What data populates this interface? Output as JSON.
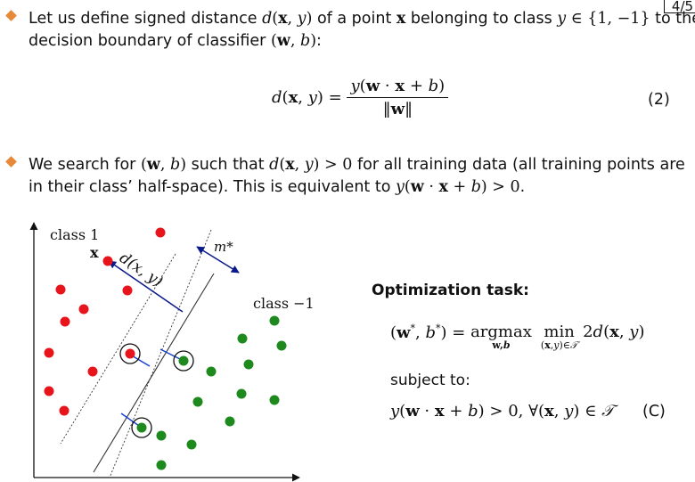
{
  "page_number": "4/5",
  "bullet1": {
    "line1_pre": "Let us define signed distance ",
    "line1_mid": " of a point ",
    "line1_mid2": " belonging to class ",
    "line1_end": " to the",
    "line2_pre": "decision boundary of classifier ",
    "line2_end": ":"
  },
  "equation": {
    "lhs": "d(x, y) =",
    "numerator": "y(w · x + b)",
    "denominator": "‖w‖",
    "number": "(2)"
  },
  "bullet2": {
    "line1_pre": "We search for ",
    "line1_mid": " such that ",
    "line1_end": " for all training data (all training points are",
    "line2_pre": "in their class’ half-space). This is equivalent to ",
    "line2_end": "."
  },
  "figure": {
    "class1_label": "class 1",
    "class_neg1_label": "class −1",
    "x_label": "x",
    "margin_label": "m*",
    "distance_label": "d(x, y)",
    "colors": {
      "class1": "#e8141c",
      "class_neg1": "#1e8a1e",
      "margin_line": "#1a3fd6"
    }
  },
  "optimization": {
    "title": "Optimization task:",
    "objective_lhs": "(w*, b*) =",
    "argmax": "argmax",
    "argmax_sub": "w,b",
    "min": "min",
    "min_sub": "(x,y)∈T",
    "objective_rhs": "2d(x, y)",
    "subject_to": "subject to:",
    "constraint": "y(w · x + b) > 0, ∀(x, y) ∈ T",
    "label": "(C)"
  }
}
